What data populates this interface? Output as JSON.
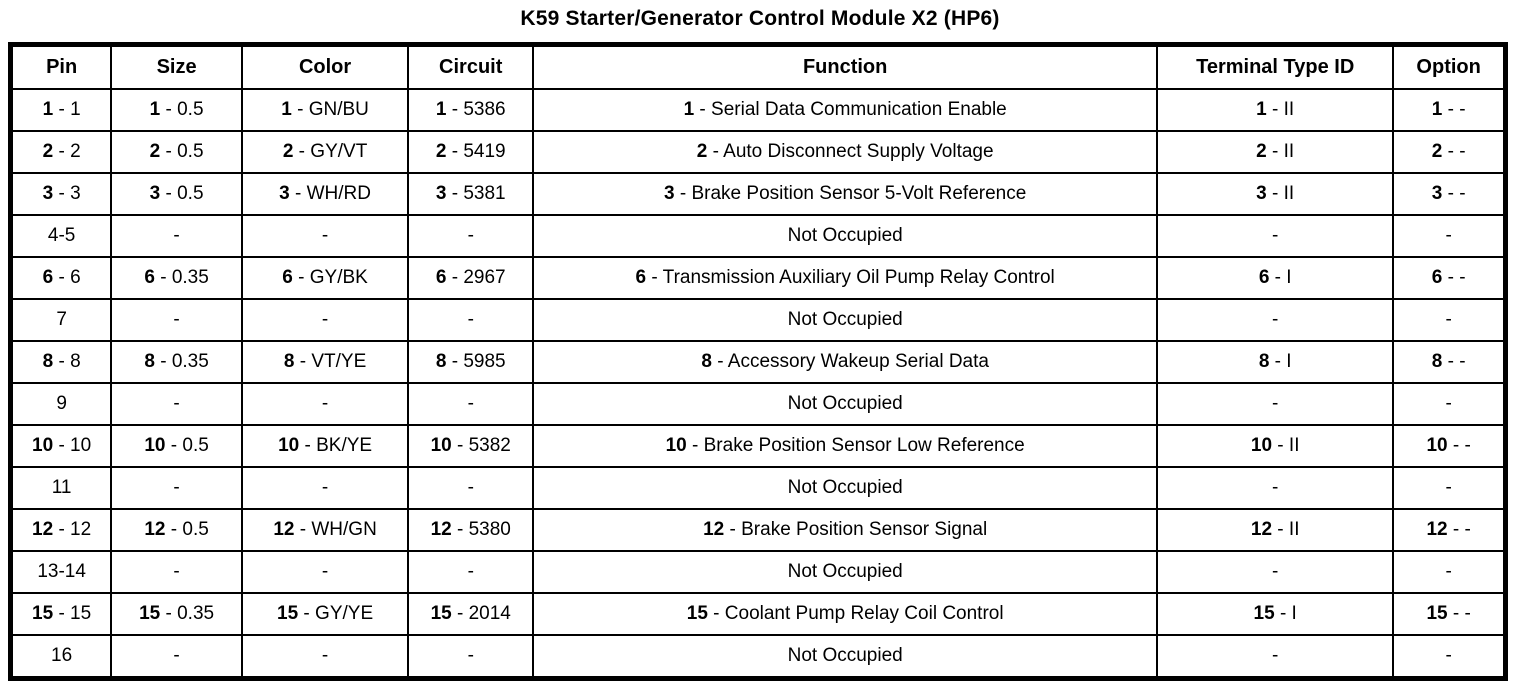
{
  "title": "K59 Starter/Generator Control Module X2 (HP6)",
  "table": {
    "headers": [
      "Pin",
      "Size",
      "Color",
      "Circuit",
      "Function",
      "Terminal Type ID",
      "Option"
    ],
    "col_widths_pct": [
      6.3,
      8.5,
      11.0,
      8.1,
      43.1,
      15.9,
      7.1
    ],
    "not_occupied_label": "Not Occupied",
    "empty_marker": "-",
    "rows": [
      [
        {
          "b": "1",
          "r": " - 1"
        },
        {
          "b": "1",
          "r": " - 0.5"
        },
        {
          "b": "1",
          "r": " - GN/BU"
        },
        {
          "b": "1",
          "r": " - 5386"
        },
        {
          "b": "1",
          "r": " - Serial Data Communication Enable"
        },
        {
          "b": "1",
          "r": " - II"
        },
        {
          "b": "1",
          "r": " - -"
        }
      ],
      [
        {
          "b": "2",
          "r": " - 2"
        },
        {
          "b": "2",
          "r": " - 0.5"
        },
        {
          "b": "2",
          "r": " - GY/VT"
        },
        {
          "b": "2",
          "r": " - 5419"
        },
        {
          "b": "2",
          "r": " - Auto Disconnect Supply Voltage"
        },
        {
          "b": "2",
          "r": " - II"
        },
        {
          "b": "2",
          "r": " - -"
        }
      ],
      [
        {
          "b": "3",
          "r": " - 3"
        },
        {
          "b": "3",
          "r": " - 0.5"
        },
        {
          "b": "3",
          "r": " - WH/RD"
        },
        {
          "b": "3",
          "r": " - 5381"
        },
        {
          "b": "3",
          "r": " - Brake Position Sensor 5-Volt Reference"
        },
        {
          "b": "3",
          "r": " - II"
        },
        {
          "b": "3",
          "r": " - -"
        }
      ],
      [
        {
          "r": "4-5"
        },
        {
          "r": "-"
        },
        {
          "r": "-"
        },
        {
          "r": "-"
        },
        {
          "r": "Not Occupied"
        },
        {
          "r": "-"
        },
        {
          "r": "-"
        }
      ],
      [
        {
          "b": "6",
          "r": " - 6"
        },
        {
          "b": "6",
          "r": " - 0.35"
        },
        {
          "b": "6",
          "r": " - GY/BK"
        },
        {
          "b": "6",
          "r": " - 2967"
        },
        {
          "b": "6",
          "r": " - Transmission Auxiliary Oil Pump Relay Control"
        },
        {
          "b": "6",
          "r": " - I"
        },
        {
          "b": "6",
          "r": " - -"
        }
      ],
      [
        {
          "r": "7"
        },
        {
          "r": "-"
        },
        {
          "r": "-"
        },
        {
          "r": "-"
        },
        {
          "r": "Not Occupied"
        },
        {
          "r": "-"
        },
        {
          "r": "-"
        }
      ],
      [
        {
          "b": "8",
          "r": " - 8"
        },
        {
          "b": "8",
          "r": " - 0.35"
        },
        {
          "b": "8",
          "r": " - VT/YE"
        },
        {
          "b": "8",
          "r": " - 5985"
        },
        {
          "b": "8",
          "r": " - Accessory Wakeup Serial Data"
        },
        {
          "b": "8",
          "r": " - I"
        },
        {
          "b": "8",
          "r": " - -"
        }
      ],
      [
        {
          "r": "9"
        },
        {
          "r": "-"
        },
        {
          "r": "-"
        },
        {
          "r": "-"
        },
        {
          "r": "Not Occupied"
        },
        {
          "r": "-"
        },
        {
          "r": "-"
        }
      ],
      [
        {
          "b": "10",
          "r": " - 10"
        },
        {
          "b": "10",
          "r": " - 0.5"
        },
        {
          "b": "10",
          "r": " - BK/YE"
        },
        {
          "b": "10",
          "r": " - 5382"
        },
        {
          "b": "10",
          "r": " - Brake Position Sensor Low Reference"
        },
        {
          "b": "10",
          "r": " - II"
        },
        {
          "b": "10",
          "r": " - -"
        }
      ],
      [
        {
          "r": "11"
        },
        {
          "r": "-"
        },
        {
          "r": "-"
        },
        {
          "r": "-"
        },
        {
          "r": "Not Occupied"
        },
        {
          "r": "-"
        },
        {
          "r": "-"
        }
      ],
      [
        {
          "b": "12",
          "r": " - 12"
        },
        {
          "b": "12",
          "r": " - 0.5"
        },
        {
          "b": "12",
          "r": " - WH/GN"
        },
        {
          "b": "12",
          "r": " - 5380"
        },
        {
          "b": "12",
          "r": " - Brake Position Sensor Signal"
        },
        {
          "b": "12",
          "r": " - II"
        },
        {
          "b": "12",
          "r": " - -"
        }
      ],
      [
        {
          "r": "13-14"
        },
        {
          "r": "-"
        },
        {
          "r": "-"
        },
        {
          "r": "-"
        },
        {
          "r": "Not Occupied"
        },
        {
          "r": "-"
        },
        {
          "r": "-"
        }
      ],
      [
        {
          "b": "15",
          "r": " - 15"
        },
        {
          "b": "15",
          "r": " - 0.35"
        },
        {
          "b": "15",
          "r": " - GY/YE"
        },
        {
          "b": "15",
          "r": " - 2014"
        },
        {
          "b": "15",
          "r": " - Coolant Pump Relay Coil Control"
        },
        {
          "b": "15",
          "r": " - I"
        },
        {
          "b": "15",
          "r": " - -"
        }
      ],
      [
        {
          "r": "16"
        },
        {
          "r": "-"
        },
        {
          "r": "-"
        },
        {
          "r": "-"
        },
        {
          "r": "Not Occupied"
        },
        {
          "r": "-"
        },
        {
          "r": "-"
        }
      ]
    ]
  },
  "colors": {
    "text": "#000000",
    "background": "#ffffff",
    "border": "#000000"
  }
}
